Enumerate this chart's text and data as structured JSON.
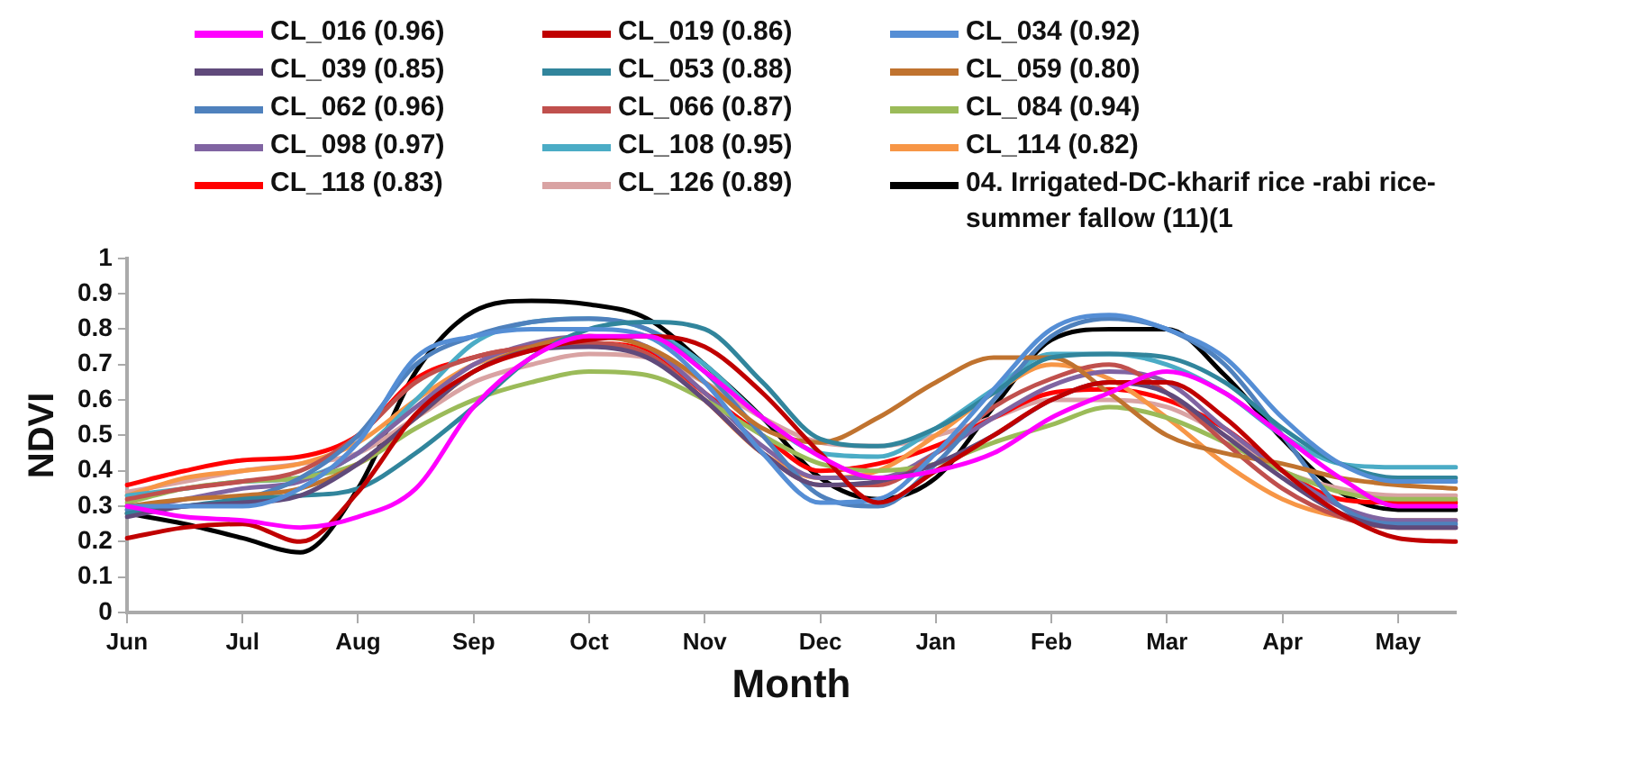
{
  "chart_data": {
    "type": "line",
    "xlabel": "Month",
    "ylabel": "NDVI",
    "legend": "top",
    "grid": false,
    "marker": "none",
    "line_style": "solid",
    "categories": [
      "Jun",
      null,
      "Jul",
      null,
      "Aug",
      null,
      "Sep",
      null,
      "Oct",
      null,
      "Nov",
      null,
      "Dec",
      null,
      "Jan",
      null,
      "Feb",
      null,
      "Mar",
      null,
      "Apr",
      null,
      "May",
      null
    ],
    "ylim": [
      0,
      1
    ],
    "yticks": [
      0,
      0.1,
      0.2,
      0.3,
      0.4,
      0.5,
      0.6,
      0.7,
      0.8,
      0.9,
      1
    ],
    "series": [
      {
        "name": "CL_016 (0.96)",
        "color": "#ff00ff",
        "values": [
          0.3,
          0.27,
          0.26,
          0.24,
          0.27,
          0.35,
          0.58,
          0.72,
          0.78,
          0.78,
          0.68,
          0.55,
          0.44,
          0.38,
          0.4,
          0.45,
          0.55,
          0.62,
          0.68,
          0.62,
          0.5,
          0.38,
          0.3,
          0.3
        ]
      },
      {
        "name": "CL_019 (0.86)",
        "color": "#c00000",
        "values": [
          0.21,
          0.24,
          0.25,
          0.2,
          0.34,
          0.56,
          0.68,
          0.74,
          0.77,
          0.78,
          0.75,
          0.62,
          0.45,
          0.31,
          0.4,
          0.5,
          0.6,
          0.65,
          0.65,
          0.55,
          0.4,
          0.28,
          0.21,
          0.2
        ]
      },
      {
        "name": "CL_034 (0.92)",
        "color": "#558ed5",
        "values": [
          0.3,
          0.3,
          0.3,
          0.35,
          0.48,
          0.72,
          0.78,
          0.8,
          0.8,
          0.78,
          0.65,
          0.45,
          0.31,
          0.32,
          0.45,
          0.63,
          0.8,
          0.84,
          0.8,
          0.72,
          0.55,
          0.42,
          0.37,
          0.37
        ]
      },
      {
        "name": "CL_039 (0.85)",
        "color": "#604a7b",
        "values": [
          0.27,
          0.3,
          0.31,
          0.33,
          0.42,
          0.55,
          0.68,
          0.74,
          0.75,
          0.72,
          0.6,
          0.45,
          0.36,
          0.37,
          0.42,
          0.5,
          0.6,
          0.65,
          0.62,
          0.5,
          0.38,
          0.28,
          0.24,
          0.24
        ]
      },
      {
        "name": "CL_053 (0.88)",
        "color": "#31859c",
        "values": [
          0.28,
          0.3,
          0.32,
          0.33,
          0.35,
          0.45,
          0.58,
          0.72,
          0.8,
          0.82,
          0.8,
          0.65,
          0.49,
          0.47,
          0.52,
          0.62,
          0.72,
          0.73,
          0.72,
          0.65,
          0.52,
          0.42,
          0.38,
          0.38
        ]
      },
      {
        "name": "CL_059 (0.80)",
        "color": "#c0732f",
        "values": [
          0.3,
          0.32,
          0.33,
          0.35,
          0.42,
          0.55,
          0.68,
          0.75,
          0.78,
          0.75,
          0.65,
          0.52,
          0.48,
          0.55,
          0.65,
          0.72,
          0.72,
          0.62,
          0.5,
          0.45,
          0.42,
          0.38,
          0.36,
          0.35
        ]
      },
      {
        "name": "CL_062 (0.96)",
        "color": "#4f81bd",
        "values": [
          0.29,
          0.3,
          0.32,
          0.38,
          0.5,
          0.7,
          0.78,
          0.82,
          0.83,
          0.8,
          0.68,
          0.5,
          0.33,
          0.3,
          0.42,
          0.6,
          0.78,
          0.83,
          0.8,
          0.7,
          0.5,
          0.3,
          0.25,
          0.25
        ]
      },
      {
        "name": "CL_066 (0.87)",
        "color": "#c0504d",
        "values": [
          0.32,
          0.35,
          0.37,
          0.4,
          0.5,
          0.65,
          0.72,
          0.75,
          0.76,
          0.73,
          0.6,
          0.45,
          0.36,
          0.36,
          0.45,
          0.58,
          0.66,
          0.7,
          0.62,
          0.48,
          0.35,
          0.27,
          0.24,
          0.24
        ]
      },
      {
        "name": "CL_084 (0.94)",
        "color": "#9bbb59",
        "values": [
          0.31,
          0.35,
          0.37,
          0.38,
          0.42,
          0.52,
          0.6,
          0.65,
          0.68,
          0.67,
          0.6,
          0.5,
          0.42,
          0.4,
          0.42,
          0.48,
          0.53,
          0.58,
          0.55,
          0.48,
          0.4,
          0.34,
          0.32,
          0.32
        ]
      },
      {
        "name": "CL_098 (0.97)",
        "color": "#8064a2",
        "values": [
          0.29,
          0.32,
          0.35,
          0.37,
          0.45,
          0.58,
          0.7,
          0.76,
          0.78,
          0.75,
          0.62,
          0.47,
          0.38,
          0.38,
          0.45,
          0.55,
          0.64,
          0.68,
          0.65,
          0.52,
          0.4,
          0.3,
          0.26,
          0.26
        ]
      },
      {
        "name": "CL_108 (0.95)",
        "color": "#4bacc6",
        "values": [
          0.33,
          0.35,
          0.37,
          0.38,
          0.45,
          0.6,
          0.76,
          0.82,
          0.83,
          0.8,
          0.7,
          0.55,
          0.45,
          0.44,
          0.52,
          0.63,
          0.73,
          0.73,
          0.7,
          0.62,
          0.5,
          0.42,
          0.41,
          0.41
        ]
      },
      {
        "name": "CL_114 (0.82)",
        "color": "#f79646",
        "values": [
          0.33,
          0.38,
          0.4,
          0.42,
          0.48,
          0.6,
          0.7,
          0.74,
          0.76,
          0.73,
          0.6,
          0.45,
          0.38,
          0.4,
          0.5,
          0.62,
          0.7,
          0.66,
          0.55,
          0.42,
          0.32,
          0.27,
          0.26,
          0.26
        ]
      },
      {
        "name": "CL_118 (0.83)",
        "color": "#ff0000",
        "values": [
          0.36,
          0.4,
          0.43,
          0.44,
          0.5,
          0.66,
          0.72,
          0.75,
          0.76,
          0.74,
          0.62,
          0.5,
          0.4,
          0.42,
          0.47,
          0.55,
          0.62,
          0.63,
          0.6,
          0.52,
          0.4,
          0.32,
          0.31,
          0.31
        ]
      },
      {
        "name": "CL_126 (0.89)",
        "color": "#d9a3a3",
        "values": [
          0.34,
          0.37,
          0.4,
          0.42,
          0.45,
          0.55,
          0.65,
          0.7,
          0.73,
          0.72,
          0.65,
          0.55,
          0.48,
          0.47,
          0.5,
          0.55,
          0.6,
          0.6,
          0.58,
          0.5,
          0.4,
          0.35,
          0.33,
          0.33
        ]
      },
      {
        "name": "04. Irrigated-DC-kharif rice -rabi rice-summer fallow (11)(1",
        "color": "#000000",
        "values": [
          0.28,
          0.25,
          0.21,
          0.17,
          0.35,
          0.68,
          0.85,
          0.88,
          0.87,
          0.83,
          0.7,
          0.55,
          0.38,
          0.32,
          0.38,
          0.58,
          0.77,
          0.8,
          0.8,
          0.67,
          0.49,
          0.34,
          0.29,
          0.29
        ]
      }
    ]
  }
}
